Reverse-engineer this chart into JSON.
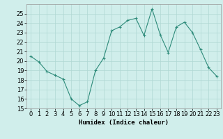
{
  "x": [
    0,
    1,
    2,
    3,
    4,
    5,
    6,
    7,
    8,
    9,
    10,
    11,
    12,
    13,
    14,
    15,
    16,
    17,
    18,
    19,
    20,
    21,
    22,
    23
  ],
  "y": [
    20.5,
    19.9,
    18.9,
    18.5,
    18.1,
    16.0,
    15.3,
    15.7,
    19.0,
    20.3,
    23.2,
    23.6,
    24.3,
    24.5,
    22.7,
    25.5,
    22.8,
    20.9,
    23.6,
    24.1,
    23.0,
    21.2,
    19.3,
    18.4
  ],
  "line_color": "#2e8b7a",
  "marker": "+",
  "marker_color": "#2e8b7a",
  "bg_color": "#d0eeeb",
  "grid_color": "#b0d8d4",
  "xlabel": "Humidex (Indice chaleur)",
  "xlim": [
    -0.5,
    23.5
  ],
  "ylim": [
    15,
    26
  ],
  "yticks": [
    15,
    16,
    17,
    18,
    19,
    20,
    21,
    22,
    23,
    24,
    25
  ],
  "xticks": [
    0,
    1,
    2,
    3,
    4,
    5,
    6,
    7,
    8,
    9,
    10,
    11,
    12,
    13,
    14,
    15,
    16,
    17,
    18,
    19,
    20,
    21,
    22,
    23
  ],
  "xlabel_fontsize": 6.5,
  "tick_fontsize": 6.0
}
